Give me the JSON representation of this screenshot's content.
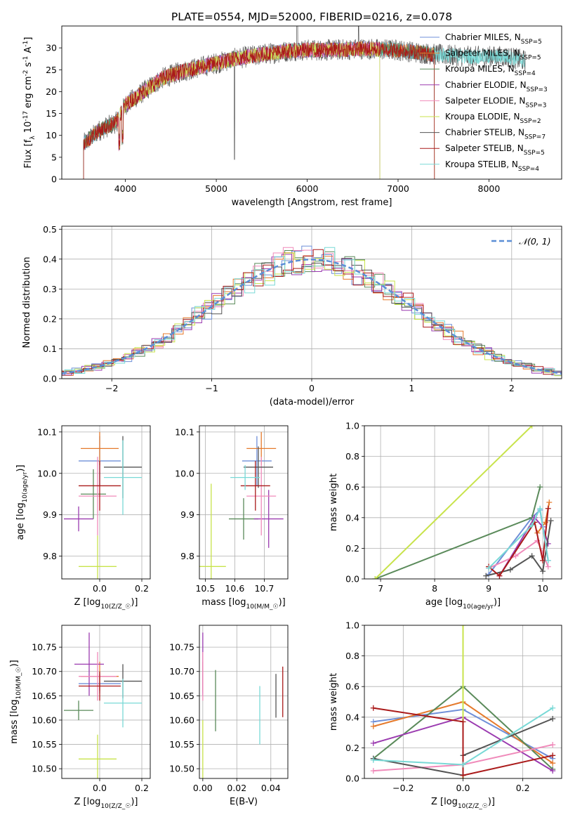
{
  "title": "PLATE=0554, MJD=52000, FIBERID=0216, z=0.078",
  "colors": [
    "#6f8fd8",
    "#e57a2c",
    "#5a8a5a",
    "#9b3bb0",
    "#f08aba",
    "#c8e34b",
    "#555555",
    "#aa1a1a",
    "#79d9d6"
  ],
  "chart_data": [
    {
      "id": "spectrum",
      "type": "line",
      "xlabel": "wavelength [Angstrom, rest frame]",
      "ylabel": "Flux [f_λ 10^-17 erg cm^-2 s^-1 A^-1]",
      "xlim": [
        3300,
        8800
      ],
      "ylim": [
        0,
        35
      ],
      "xticks": [
        4000,
        5000,
        6000,
        7000,
        8000
      ],
      "yticks": [
        0,
        5,
        10,
        15,
        20,
        25,
        30
      ],
      "grid": false,
      "legend": "top-right",
      "series": [
        {
          "name": "Chabrier MILES, N_SSP=5",
          "range": [
            3540,
            7400
          ]
        },
        {
          "name": "Salpeter MILES, N_SSP=5",
          "range": [
            3540,
            7400
          ]
        },
        {
          "name": "Kroupa MILES, N_SSP=4",
          "range": [
            3540,
            7400
          ]
        },
        {
          "name": "Chabrier ELODIE, N_SSP=3",
          "range": [
            3900,
            6800
          ]
        },
        {
          "name": "Salpeter ELODIE, N_SSP=3",
          "range": [
            3900,
            6800
          ]
        },
        {
          "name": "Kroupa ELODIE, N_SSP=2",
          "range": [
            3900,
            6800
          ]
        },
        {
          "name": "Chabrier STELIB, N_SSP=7",
          "range": [
            3540,
            8400
          ]
        },
        {
          "name": "Salpeter STELIB, N_SSP=5",
          "range": [
            3540,
            7400
          ]
        },
        {
          "name": "Kroupa STELIB, N_SSP=4",
          "range": [
            3540,
            8400
          ]
        }
      ],
      "continuum": [
        [
          3540,
          8
        ],
        [
          3700,
          11
        ],
        [
          3900,
          13
        ],
        [
          4000,
          17
        ],
        [
          4200,
          20
        ],
        [
          4400,
          23
        ],
        [
          4600,
          24.5
        ],
        [
          4800,
          25.5
        ],
        [
          5000,
          26.5
        ],
        [
          5200,
          27.5
        ],
        [
          5500,
          28.5
        ],
        [
          5800,
          29.3
        ],
        [
          6000,
          29.5
        ],
        [
          6300,
          29.5
        ],
        [
          6600,
          29.8
        ],
        [
          7000,
          29.5
        ],
        [
          7400,
          28.5
        ],
        [
          7800,
          28
        ],
        [
          8200,
          28
        ],
        [
          8400,
          27
        ]
      ]
    },
    {
      "id": "residuals",
      "type": "histogram",
      "xlabel": "(data-model)/error",
      "ylabel": "Normed distribution",
      "xlim": [
        -2.5,
        2.5
      ],
      "ylim": [
        0,
        0.51
      ],
      "xticks": [
        -2,
        -1,
        0,
        1,
        2
      ],
      "yticks": [
        0,
        0.1,
        0.2,
        0.3,
        0.4,
        0.5
      ],
      "grid": true,
      "legend": "top-right",
      "reference": {
        "name": "𝒩(0, 1)",
        "mean": 0,
        "sigma": 1
      }
    },
    {
      "id": "age-Z",
      "type": "errorbar",
      "xlabel": "Z [log10(Z/Z☉)]",
      "ylabel": "age  [log10(age/yr)]",
      "xlim": [
        -0.18,
        0.24
      ],
      "ylim": [
        9.745,
        10.115
      ],
      "xticks": [
        0.0,
        0.2
      ],
      "yticks": [
        9.8,
        9.9,
        10.0,
        10.1
      ],
      "grid": true,
      "points": [
        {
          "x": 0.0,
          "xerr": 0.1,
          "y": 10.03,
          "yerr": 0.06
        },
        {
          "x": 0.0,
          "xerr": 0.09,
          "y": 10.06,
          "yerr": 0.04
        },
        {
          "x": -0.03,
          "xerr": 0.06,
          "y": 9.95,
          "yerr": 0.06
        },
        {
          "x": -0.1,
          "xerr": 0.07,
          "y": 9.89,
          "yerr": 0.03
        },
        {
          "x": -0.01,
          "xerr": 0.09,
          "y": 9.945,
          "yerr": 0.095
        },
        {
          "x": -0.01,
          "xerr": 0.09,
          "y": 9.775,
          "yerr": 0.075
        },
        {
          "x": 0.11,
          "xerr": 0.09,
          "y": 10.015,
          "yerr": 0.075
        },
        {
          "x": 0.0,
          "xerr": 0.1,
          "y": 9.97,
          "yerr": 0.06
        },
        {
          "x": 0.11,
          "xerr": 0.09,
          "y": 9.99,
          "yerr": 0.09
        }
      ]
    },
    {
      "id": "age-mass",
      "type": "errorbar",
      "xlabel": "mass [log10(M/M☉)]",
      "ylabel": "",
      "xlim": [
        10.48,
        10.78
      ],
      "ylim": [
        9.745,
        10.115
      ],
      "xticks": [
        10.5,
        10.6,
        10.7
      ],
      "yticks": [
        9.8,
        9.9,
        10.0,
        10.1
      ],
      "grid": true,
      "points": [
        {
          "x": 10.675,
          "xerr": 0.05,
          "y": 10.03,
          "yerr": 0.06
        },
        {
          "x": 10.69,
          "xerr": 0.05,
          "y": 10.06,
          "yerr": 0.04
        },
        {
          "x": 10.63,
          "xerr": 0.05,
          "y": 9.89,
          "yerr": 0.05
        },
        {
          "x": 10.715,
          "xerr": 0.05,
          "y": 9.89,
          "yerr": 0.07
        },
        {
          "x": 10.69,
          "xerr": 0.05,
          "y": 9.945,
          "yerr": 0.095
        },
        {
          "x": 10.52,
          "xerr": 0.05,
          "y": 9.775,
          "yerr": 0.2
        },
        {
          "x": 10.68,
          "xerr": 0.05,
          "y": 10.015,
          "yerr": 0.05
        },
        {
          "x": 10.67,
          "xerr": 0.05,
          "y": 9.97,
          "yerr": 0.06
        },
        {
          "x": 10.635,
          "xerr": 0.05,
          "y": 9.99,
          "yerr": 0.03
        }
      ]
    },
    {
      "id": "weight-age",
      "type": "line",
      "xlabel": "age  [log10(age/yr)]",
      "ylabel": "mass weight",
      "xlim": [
        6.7,
        10.35
      ],
      "ylim": [
        0,
        1
      ],
      "xticks": [
        7,
        8,
        9,
        10
      ],
      "yticks": [
        0.0,
        0.2,
        0.4,
        0.6,
        0.8,
        1.0
      ],
      "grid": true,
      "series": [
        {
          "points": [
            [
              9.0,
              0.03
            ],
            [
              9.8,
              0.4
            ],
            [
              9.95,
              0.45
            ],
            [
              10.1,
              0.12
            ]
          ]
        },
        {
          "points": [
            [
              9.9,
              0.3
            ],
            [
              10.05,
              0.37
            ],
            [
              10.12,
              0.5
            ]
          ]
        },
        {
          "points": [
            [
              6.9,
              0.0
            ],
            [
              9.8,
              0.4
            ],
            [
              9.95,
              0.6
            ]
          ]
        },
        {
          "points": [
            [
              9.2,
              0.02
            ],
            [
              9.85,
              0.4
            ],
            [
              10.0,
              0.34
            ],
            [
              10.1,
              0.23
            ]
          ]
        },
        {
          "points": [
            [
              9.0,
              0.07
            ],
            [
              9.5,
              0.15
            ],
            [
              9.9,
              0.25
            ],
            [
              10.1,
              0.08
            ]
          ]
        },
        {
          "points": [
            [
              6.9,
              0.0
            ],
            [
              9.8,
              1.0
            ]
          ]
        },
        {
          "points": [
            [
              8.95,
              0.02
            ],
            [
              9.4,
              0.06
            ],
            [
              9.8,
              0.15
            ],
            [
              10.0,
              0.05
            ],
            [
              10.15,
              0.38
            ]
          ]
        },
        {
          "points": [
            [
              9.0,
              0.08
            ],
            [
              9.2,
              0.02
            ],
            [
              9.85,
              0.37
            ],
            [
              10.0,
              0.12
            ],
            [
              10.1,
              0.46
            ]
          ]
        },
        {
          "points": [
            [
              9.0,
              0.07
            ],
            [
              9.8,
              0.35
            ],
            [
              9.95,
              0.46
            ],
            [
              10.1,
              0.12
            ]
          ]
        }
      ]
    },
    {
      "id": "mass-Z",
      "type": "errorbar",
      "xlabel": "Z [log10(Z/Z☉)]",
      "ylabel": "mass [log10(M/M☉)]",
      "xlim": [
        -0.18,
        0.24
      ],
      "ylim": [
        10.48,
        10.795
      ],
      "xticks": [
        0.0,
        0.2
      ],
      "yticks": [
        10.5,
        10.55,
        10.6,
        10.65,
        10.7,
        10.75
      ],
      "grid": true,
      "points": [
        {
          "x": 0.0,
          "xerr": 0.1,
          "y": 10.675,
          "yerr": 0.02
        },
        {
          "x": 0.0,
          "xerr": 0.09,
          "y": 10.69,
          "yerr": 0.03
        },
        {
          "x": -0.1,
          "xerr": 0.07,
          "y": 10.62,
          "yerr": 0.02
        },
        {
          "x": -0.05,
          "xerr": 0.07,
          "y": 10.715,
          "yerr": 0.065
        },
        {
          "x": -0.01,
          "xerr": 0.09,
          "y": 10.69,
          "yerr": 0.05
        },
        {
          "x": -0.01,
          "xerr": 0.09,
          "y": 10.52,
          "yerr": 0.05
        },
        {
          "x": 0.11,
          "xerr": 0.09,
          "y": 10.68,
          "yerr": 0.035
        },
        {
          "x": 0.0,
          "xerr": 0.1,
          "y": 10.67,
          "yerr": 0.03
        },
        {
          "x": 0.11,
          "xerr": 0.09,
          "y": 10.635,
          "yerr": 0.05
        }
      ]
    },
    {
      "id": "mass-EBV",
      "type": "errorbar",
      "xlabel": "E(B-V)",
      "ylabel": "",
      "xlim": [
        -0.002,
        0.05
      ],
      "ylim": [
        10.48,
        10.795
      ],
      "xticks": [
        0.0,
        0.02,
        0.04
      ],
      "yticks": [
        10.5,
        10.55,
        10.6,
        10.65,
        10.7,
        10.75
      ],
      "grid": true,
      "points": [
        {
          "x": 0.0,
          "y": 10.675,
          "yerr": 0.02
        },
        {
          "x": 0.0,
          "y": 10.69,
          "yerr": 0.03
        },
        {
          "x": 0.0075,
          "y": 10.64,
          "yerr": 0.063
        },
        {
          "x": 0.0,
          "y": 10.715,
          "yerr": 0.065
        },
        {
          "x": 0.0,
          "y": 10.69,
          "yerr": 0.05
        },
        {
          "x": 0.0,
          "y": 10.54,
          "yerr": 0.06
        },
        {
          "x": 0.043,
          "y": 10.65,
          "yerr": 0.045
        },
        {
          "x": 0.047,
          "y": 10.658,
          "yerr": 0.052
        },
        {
          "x": 0.0335,
          "y": 10.61,
          "yerr": 0.06
        }
      ]
    },
    {
      "id": "weight-Z",
      "type": "line",
      "xlabel": "Z [log10(Z/Z☉)]",
      "ylabel": "mass weight",
      "xlim": [
        -0.33,
        0.33
      ],
      "ylim": [
        0,
        1
      ],
      "xticks": [
        -0.2,
        0.0,
        0.2
      ],
      "yticks": [
        0.0,
        0.2,
        0.4,
        0.6,
        0.8,
        1.0
      ],
      "grid": true,
      "series": [
        {
          "points": [
            [
              -0.3,
              0.37
            ],
            [
              0.0,
              0.45
            ],
            [
              0.3,
              0.13
            ]
          ]
        },
        {
          "points": [
            [
              -0.3,
              0.34
            ],
            [
              0.0,
              0.5
            ],
            [
              0.3,
              0.1
            ]
          ]
        },
        {
          "points": [
            [
              -0.3,
              0.13
            ],
            [
              0.0,
              0.6
            ],
            [
              0.3,
              0.06
            ]
          ]
        },
        {
          "points": [
            [
              -0.3,
              0.23
            ],
            [
              0.0,
              0.4
            ],
            [
              0.3,
              0.05
            ]
          ]
        },
        {
          "points": [
            [
              -0.3,
              0.05
            ],
            [
              0.0,
              0.09
            ],
            [
              0.3,
              0.22
            ]
          ]
        },
        {
          "points": [
            [
              0.0,
              0.0
            ],
            [
              0.0,
              1.0
            ]
          ]
        },
        {
          "points": [
            [
              -0.3,
              0.13
            ],
            [
              0.0,
              0.02
            ],
            [
              0.0,
              0.15
            ],
            [
              0.3,
              0.39
            ]
          ]
        },
        {
          "points": [
            [
              -0.3,
              0.46
            ],
            [
              0.0,
              0.37
            ],
            [
              0.0,
              0.02
            ],
            [
              0.3,
              0.15
            ]
          ]
        },
        {
          "points": [
            [
              -0.3,
              0.12
            ],
            [
              0.0,
              0.09
            ],
            [
              0.3,
              0.46
            ]
          ]
        }
      ]
    }
  ]
}
